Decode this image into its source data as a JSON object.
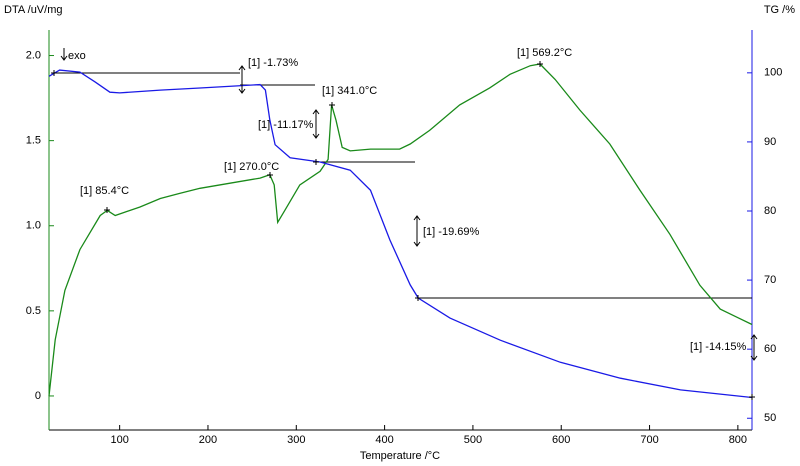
{
  "chart_data": {
    "type": "line",
    "ylabel": "DTA /uV/mg",
    "y2label": "TG /%",
    "xlabel": "Temperature /°C",
    "xlim": [
      20,
      816
    ],
    "xticks": [
      100,
      200,
      300,
      400,
      500,
      600,
      700,
      800
    ],
    "ylim": [
      -0.2,
      2.15
    ],
    "yticks": [
      0,
      0.5,
      {
        "value": 1,
        "label": "1.0"
      },
      1.5,
      {
        "value": 2,
        "label": "2.0"
      }
    ],
    "y2lim": [
      48.3,
      106.2
    ],
    "y2ticks": [
      50,
      60,
      70,
      80,
      90,
      100
    ],
    "series": [
      {
        "name": "DTA",
        "color": "#1a8a1a",
        "x": [
          20,
          27,
          38,
          55,
          78,
          86,
          95,
          106,
          123,
          146,
          168,
          191,
          225,
          259,
          270,
          275,
          279,
          287,
          304,
          327,
          336,
          340,
          345,
          352,
          361,
          384,
          417,
          429,
          451,
          485,
          519,
          542,
          565,
          576,
          593,
          621,
          655,
          689,
          723,
          757,
          780,
          800,
          816
        ],
        "values": [
          0,
          0.33,
          0.62,
          0.86,
          1.06,
          1.09,
          1.06,
          1.08,
          1.11,
          1.16,
          1.19,
          1.22,
          1.25,
          1.28,
          1.3,
          1.24,
          1.02,
          1.09,
          1.24,
          1.32,
          1.39,
          1.71,
          1.62,
          1.46,
          1.44,
          1.45,
          1.45,
          1.48,
          1.56,
          1.71,
          1.81,
          1.89,
          1.94,
          1.95,
          1.86,
          1.68,
          1.48,
          1.21,
          0.95,
          0.65,
          0.51,
          0.46,
          0.42
        ]
      },
      {
        "name": "TG",
        "color": "#1a1ae6",
        "axis": "y2",
        "x": [
          20,
          32,
          55,
          72,
          89,
          100,
          146,
          191,
          259,
          265,
          270,
          276,
          293,
          327,
          361,
          384,
          406,
          429,
          438,
          474,
          531,
          599,
          667,
          735,
          816
        ],
        "values": [
          99.5,
          100.4,
          100.1,
          98.7,
          97.2,
          97.1,
          97.5,
          97.8,
          98.3,
          97.5,
          93.2,
          89.6,
          87.7,
          87.1,
          85.9,
          83.0,
          75.8,
          69.3,
          67.4,
          64.5,
          61.3,
          58.1,
          55.8,
          54.1,
          53.0
        ]
      }
    ],
    "annotations": [
      "exo",
      "[1] -1.73%",
      "[1] 341.0°C",
      "[1] -11.17%",
      "[1] 270.0°C",
      "[1] 85.4°C",
      "[1] 569.2°C",
      "[1] -19.69%",
      "[1] -14.15%"
    ]
  }
}
